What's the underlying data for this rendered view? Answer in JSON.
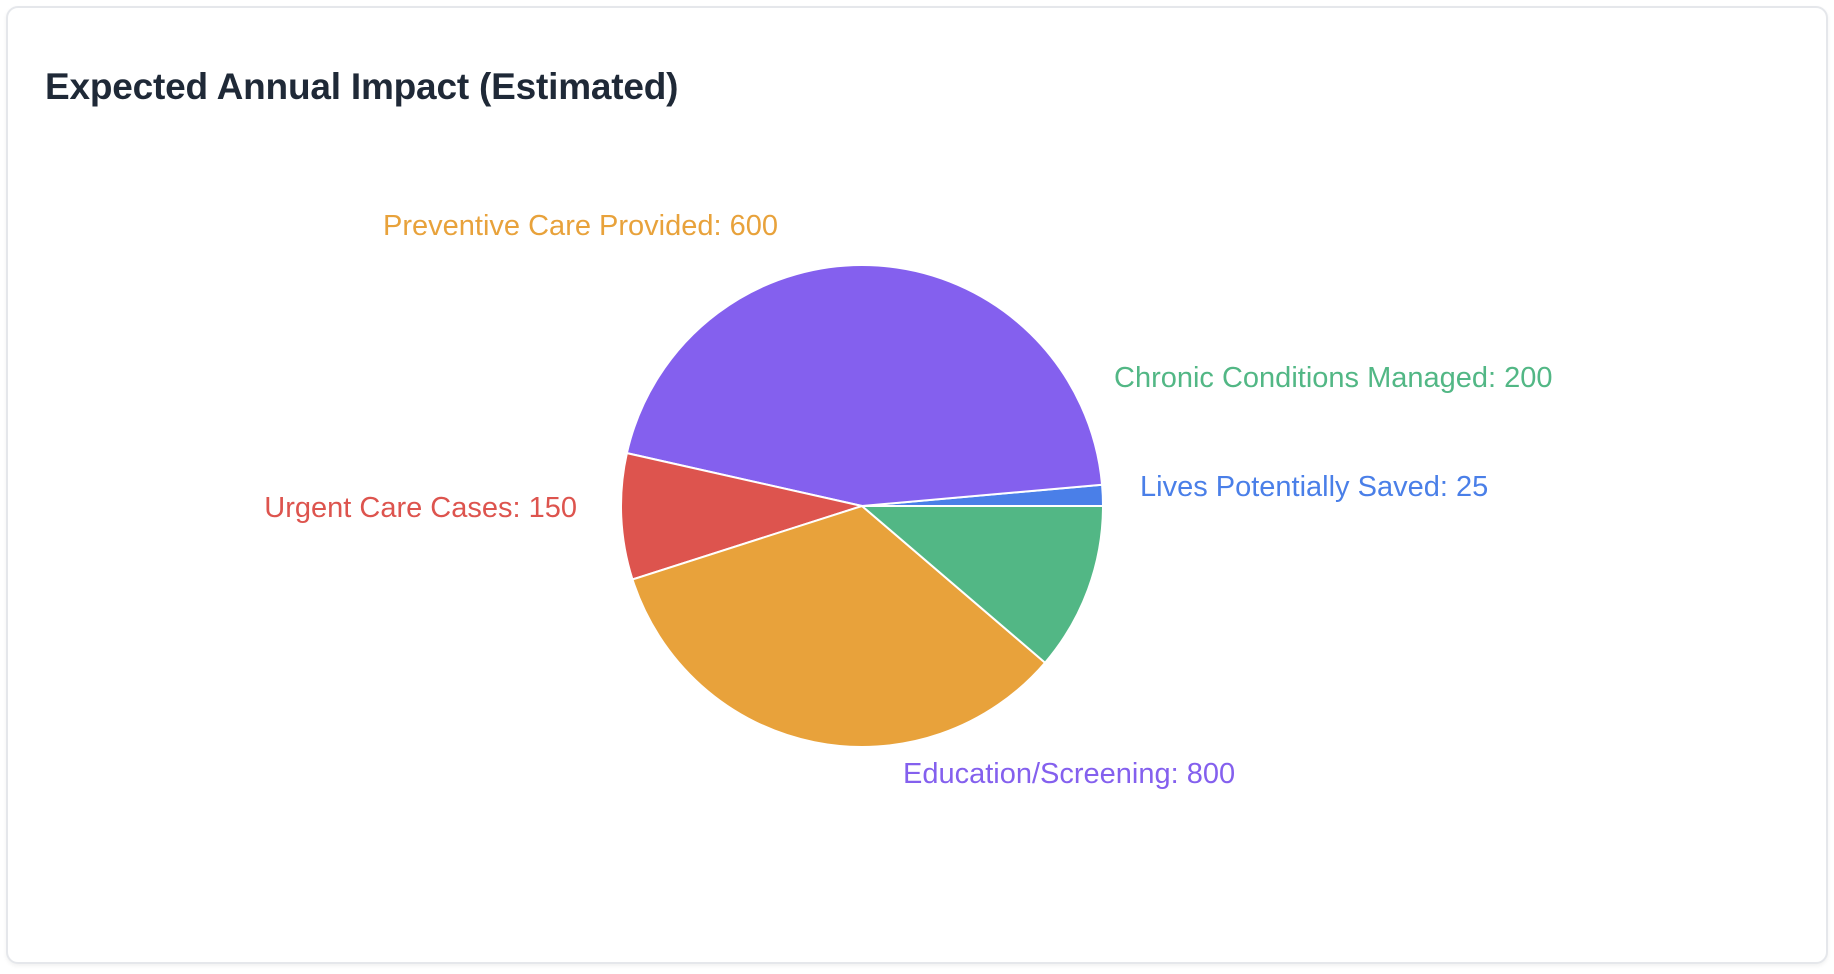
{
  "card": {
    "title": "Expected Annual Impact (Estimated)"
  },
  "chart_data": {
    "type": "pie",
    "title": "Expected Annual Impact (Estimated)",
    "slices": [
      {
        "label": "Lives Potentially Saved",
        "value": 25,
        "color": "#4a7fe8",
        "text": "Lives Potentially Saved: 25"
      },
      {
        "label": "Education/Screening",
        "value": 800,
        "color": "#8460ee",
        "text": "Education/Screening: 800"
      },
      {
        "label": "Urgent Care Cases",
        "value": 150,
        "color": "#dd544e",
        "text": "Urgent Care Cases: 150"
      },
      {
        "label": "Preventive Care Provided",
        "value": 600,
        "color": "#e8a23b",
        "text": "Preventive Care Provided: 600"
      },
      {
        "label": "Chronic Conditions Managed",
        "value": 200,
        "color": "#52b785",
        "text": "Chronic Conditions Managed: 200"
      }
    ]
  }
}
